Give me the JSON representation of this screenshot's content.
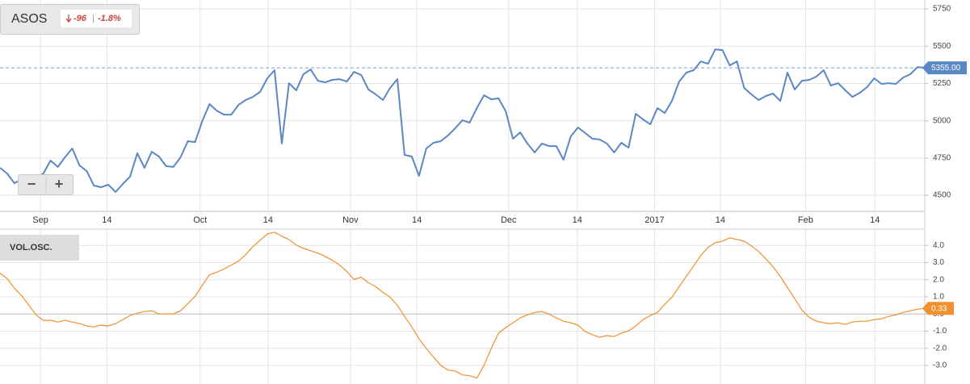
{
  "controls": {
    "zoom_out": "−",
    "zoom_in": "+"
  },
  "chart_data": [
    {
      "type": "line",
      "title": "ASOS",
      "change": "-96",
      "change_pct": "-1.8%",
      "series": [
        {
          "name": "ASOS",
          "color": "#5b87c5",
          "values": [
            4684,
            4646,
            4581,
            4608,
            4608,
            4619,
            4646,
            4733,
            4690,
            4755,
            4814,
            4700,
            4663,
            4565,
            4554,
            4571,
            4522,
            4576,
            4625,
            4782,
            4684,
            4792,
            4760,
            4695,
            4690,
            4755,
            4863,
            4857,
            4998,
            5112,
            5068,
            5041,
            5041,
            5106,
            5139,
            5160,
            5193,
            5285,
            5339,
            4847,
            5252,
            5204,
            5312,
            5344,
            5268,
            5258,
            5274,
            5279,
            5263,
            5328,
            5306,
            5209,
            5177,
            5139,
            5220,
            5279,
            4771,
            4760,
            4630,
            4814,
            4852,
            4863,
            4901,
            4949,
            5003,
            4987,
            5085,
            5171,
            5144,
            5150,
            5063,
            4879,
            4922,
            4847,
            4787,
            4847,
            4830,
            4830,
            4738,
            4895,
            4955,
            4917,
            4879,
            4874,
            4847,
            4787,
            4852,
            4819,
            5047,
            5009,
            4976,
            5085,
            5052,
            5133,
            5263,
            5323,
            5339,
            5398,
            5382,
            5479,
            5474,
            5371,
            5398,
            5220,
            5177,
            5139,
            5166,
            5182,
            5133,
            5323,
            5209,
            5268,
            5274,
            5296,
            5339,
            5236,
            5252,
            5204,
            5160,
            5187,
            5225,
            5285,
            5247,
            5252,
            5247,
            5290,
            5312,
            5360,
            5355
          ]
        }
      ],
      "current": {
        "value": 5355,
        "label": "5355.00"
      },
      "xlim": [
        0,
        128
      ],
      "xticks": [
        {
          "value": 5.6,
          "label": "Sep"
        },
        {
          "value": 14.8,
          "label": "14"
        },
        {
          "value": 27.7,
          "label": "Oct"
        },
        {
          "value": 37.1,
          "label": "14"
        },
        {
          "value": 48.5,
          "label": "Nov"
        },
        {
          "value": 57.7,
          "label": "14"
        },
        {
          "value": 70.4,
          "label": "Dec"
        },
        {
          "value": 79.9,
          "label": "14"
        },
        {
          "value": 90.6,
          "label": "2017"
        },
        {
          "value": 99.7,
          "label": "14"
        },
        {
          "value": 111.5,
          "label": "Feb"
        },
        {
          "value": 121.1,
          "label": "14"
        }
      ],
      "ylim": [
        4392,
        5810
      ],
      "yticks": [
        4500,
        4750,
        5000,
        5250,
        5500,
        5750
      ],
      "grid": true
    },
    {
      "type": "line",
      "title": "VOL.OSC.",
      "series": [
        {
          "name": "VOL.OSC.",
          "color": "#f0902e",
          "values": [
            2.38,
            2.06,
            1.5,
            1.07,
            0.51,
            -0.05,
            -0.37,
            -0.37,
            -0.47,
            -0.37,
            -0.47,
            -0.56,
            -0.7,
            -0.75,
            -0.65,
            -0.7,
            -0.56,
            -0.33,
            -0.09,
            0.05,
            0.14,
            0.19,
            0,
            0,
            0,
            0.19,
            0.61,
            1.03,
            1.68,
            2.29,
            2.43,
            2.62,
            2.85,
            3.08,
            3.46,
            3.93,
            4.3,
            4.67,
            4.77,
            4.53,
            4.35,
            4.02,
            3.83,
            3.69,
            3.55,
            3.36,
            3.13,
            2.85,
            2.48,
            2.01,
            2.15,
            1.82,
            1.59,
            1.26,
            0.98,
            0.51,
            -0.14,
            -0.75,
            -1.45,
            -2.01,
            -2.52,
            -2.99,
            -3.27,
            -3.32,
            -3.55,
            -3.6,
            -3.74,
            -2.99,
            -2.01,
            -1.12,
            -0.79,
            -0.51,
            -0.23,
            -0.05,
            0.09,
            0.14,
            0,
            -0.23,
            -0.42,
            -0.51,
            -0.65,
            -1.03,
            -1.21,
            -1.36,
            -1.26,
            -1.31,
            -1.12,
            -0.98,
            -0.7,
            -0.33,
            -0.09,
            0.09,
            0.56,
            0.98,
            1.59,
            2.2,
            2.8,
            3.41,
            3.88,
            4.16,
            4.25,
            4.44,
            4.35,
            4.25,
            3.97,
            3.64,
            3.22,
            2.76,
            2.2,
            1.54,
            0.89,
            0.23,
            -0.19,
            -0.42,
            -0.51,
            -0.56,
            -0.51,
            -0.61,
            -0.47,
            -0.42,
            -0.42,
            -0.33,
            -0.28,
            -0.14,
            -0.05,
            0.09,
            0.19,
            0.28,
            0.33
          ]
        }
      ],
      "current": 0.33,
      "ylim": [
        -3.8,
        4.95
      ],
      "yticks": [
        {
          "value": -3,
          "label": "-3.0"
        },
        {
          "value": -2,
          "label": "-2.0"
        },
        {
          "value": -1,
          "label": "-1.0"
        },
        {
          "value": 0,
          "label": "0.0"
        },
        {
          "value": 1,
          "label": "1.0"
        },
        {
          "value": 2,
          "label": "2.0"
        },
        {
          "value": 3,
          "label": "3.0"
        },
        {
          "value": 4,
          "label": "4.0"
        }
      ],
      "grid": true
    }
  ]
}
